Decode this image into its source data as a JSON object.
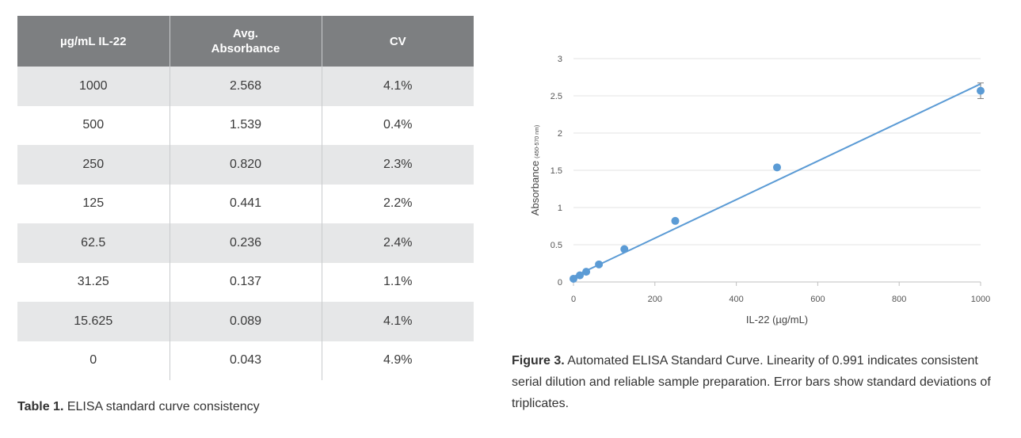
{
  "table": {
    "headers": [
      "µg/mL IL-22",
      "Avg.\nAbsorbance",
      "CV"
    ],
    "rows": [
      [
        "1000",
        "2.568",
        "4.1%"
      ],
      [
        "500",
        "1.539",
        "0.4%"
      ],
      [
        "250",
        "0.820",
        "2.3%"
      ],
      [
        "125",
        "0.441",
        "2.2%"
      ],
      [
        "62.5",
        "0.236",
        "2.4%"
      ],
      [
        "31.25",
        "0.137",
        "1.1%"
      ],
      [
        "15.625",
        "0.089",
        "4.1%"
      ],
      [
        "0",
        "0.043",
        "4.9%"
      ]
    ],
    "caption_bold": "Table 1.",
    "caption_text": " ELISA standard curve consistency"
  },
  "figure": {
    "caption_bold": "Figure 3.",
    "caption_text": " Automated ELISA Standard Curve. Linearity of 0.991 indicates consistent serial dilution and reliable sample preparation. Error bars show standard deviations of triplicates."
  },
  "chart_data": {
    "type": "scatter",
    "title": "",
    "xlabel": "IL-22 (µg/mL)",
    "ylabel": "Absorbance",
    "ylabel_sub": "(450-570 nm)",
    "xlim": [
      0,
      1000
    ],
    "ylim": [
      0,
      3
    ],
    "xticks": [
      0,
      200,
      400,
      600,
      800,
      1000
    ],
    "yticks": [
      0,
      0.5,
      1,
      1.5,
      2,
      2.5,
      3
    ],
    "grid": true,
    "colors": {
      "marker": "#5b9bd5",
      "line": "#5b9bd5"
    },
    "x": [
      0,
      15.625,
      31.25,
      62.5,
      125,
      250,
      500,
      1000
    ],
    "y": [
      0.043,
      0.089,
      0.137,
      0.236,
      0.441,
      0.82,
      1.539,
      2.568
    ],
    "error_y": [
      0.002,
      0.004,
      0.002,
      0.006,
      0.01,
      0.019,
      0.006,
      0.105
    ],
    "trendline": {
      "type": "linear",
      "x": [
        0,
        1000
      ],
      "y": [
        0.07,
        2.66
      ]
    }
  }
}
